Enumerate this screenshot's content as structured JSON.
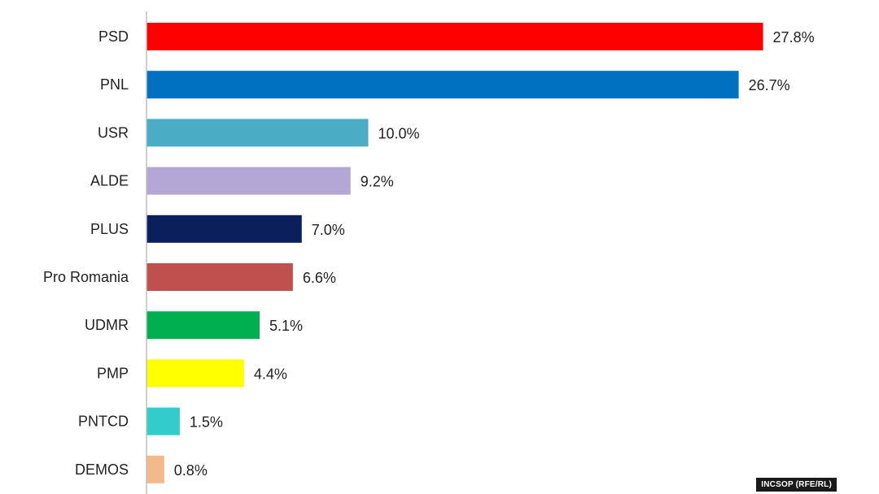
{
  "chart_data": {
    "type": "bar",
    "orientation": "horizontal",
    "categories": [
      "PSD",
      "PNL",
      "USR",
      "ALDE",
      "PLUS",
      "Pro Romania",
      "UDMR",
      "PMP",
      "PNTCD",
      "DEMOS"
    ],
    "values": [
      27.8,
      26.7,
      10.0,
      9.2,
      7.0,
      6.6,
      5.1,
      4.4,
      1.5,
      0.8
    ],
    "value_labels": [
      "27.8%",
      "26.7%",
      "10.0%",
      "9.2%",
      "7.0%",
      "6.6%",
      "5.1%",
      "4.4%",
      "1.5%",
      "0.8%"
    ],
    "colors": [
      "#ff0000",
      "#0070c0",
      "#4bacc6",
      "#b4a7d6",
      "#0b1f5c",
      "#c0504d",
      "#00b050",
      "#ffff00",
      "#33cccc",
      "#f4b98a"
    ],
    "xlim": [
      0,
      28
    ],
    "grid": false,
    "legend": "none",
    "title": "",
    "xlabel": "",
    "ylabel": ""
  },
  "source": "INCSOP (RFE/RL)"
}
